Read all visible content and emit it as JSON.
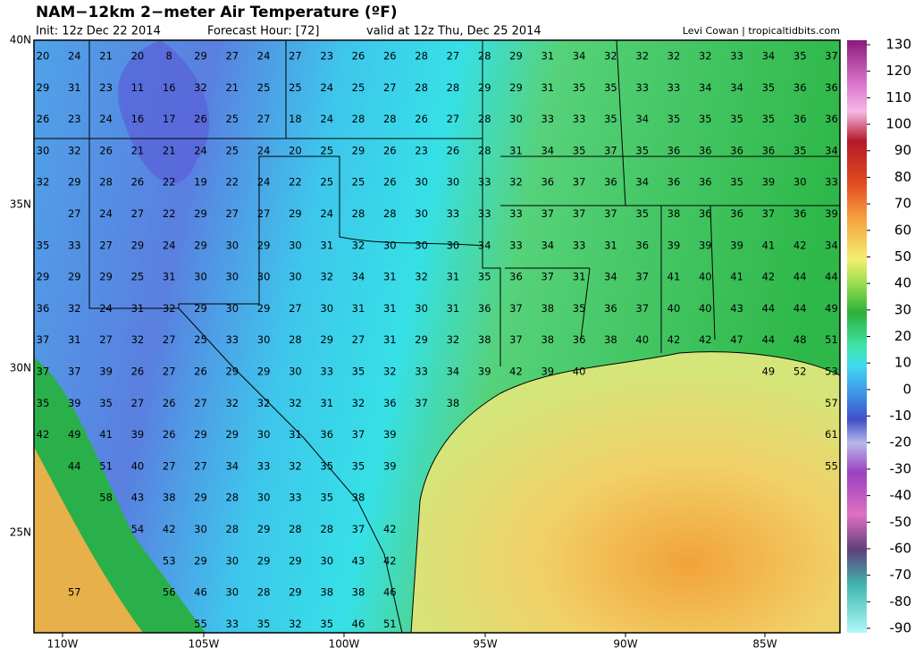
{
  "header": {
    "title": "NAM−12km 2−meter Air Temperature (ºF)",
    "init": "Init: 12z Dec 22 2014",
    "forecast_hour": "Forecast Hour: [72]",
    "valid": "valid at 12z Thu, Dec 25 2014",
    "credit": "Levi Cowan | tropicaltidbits.com"
  },
  "map": {
    "lat_labels": [
      "40N",
      "35N",
      "30N",
      "25N"
    ],
    "lon_labels": [
      "110W",
      "105W",
      "100W",
      "95W",
      "90W",
      "85W"
    ],
    "stations": [
      [
        20,
        24,
        21,
        20,
        8,
        29,
        27,
        24,
        27,
        23,
        26,
        26,
        28,
        27,
        28,
        29,
        31,
        34,
        32,
        32,
        32,
        32,
        33,
        34,
        35,
        37
      ],
      [
        29,
        31,
        23,
        11,
        16,
        32,
        21,
        25,
        25,
        24,
        25,
        27,
        28,
        28,
        29,
        29,
        31,
        35,
        35,
        33,
        33,
        34,
        34,
        35,
        36,
        36
      ],
      [
        26,
        23,
        24,
        16,
        17,
        26,
        25,
        27,
        18,
        24,
        28,
        28,
        26,
        27,
        28,
        30,
        33,
        33,
        35,
        34,
        35,
        35,
        35,
        35,
        36,
        36
      ],
      [
        30,
        32,
        26,
        21,
        21,
        24,
        25,
        24,
        20,
        25,
        29,
        26,
        23,
        26,
        28,
        31,
        34,
        35,
        37,
        35,
        36,
        36,
        36,
        36,
        35,
        34
      ],
      [
        32,
        29,
        28,
        26,
        22,
        19,
        22,
        24,
        22,
        25,
        25,
        26,
        30,
        30,
        33,
        32,
        36,
        37,
        36,
        34,
        36,
        36,
        35,
        39,
        30,
        33
      ],
      [
        null,
        27,
        24,
        27,
        22,
        29,
        27,
        27,
        29,
        24,
        28,
        28,
        30,
        33,
        33,
        33,
        37,
        37,
        37,
        35,
        38,
        36,
        36,
        37,
        36,
        39
      ],
      [
        35,
        33,
        27,
        29,
        24,
        29,
        30,
        29,
        30,
        31,
        32,
        30,
        30,
        30,
        34,
        33,
        34,
        33,
        31,
        36,
        39,
        39,
        39,
        41,
        42,
        34
      ],
      [
        29,
        29,
        29,
        25,
        31,
        30,
        30,
        30,
        30,
        32,
        34,
        31,
        32,
        31,
        35,
        36,
        37,
        31,
        34,
        37,
        41,
        40,
        41,
        42,
        44,
        44
      ],
      [
        36,
        32,
        24,
        31,
        32,
        29,
        30,
        29,
        27,
        30,
        31,
        31,
        30,
        31,
        36,
        37,
        38,
        35,
        36,
        37,
        40,
        40,
        43,
        44,
        44,
        49
      ],
      [
        37,
        31,
        27,
        32,
        27,
        25,
        33,
        30,
        28,
        29,
        27,
        31,
        29,
        32,
        38,
        37,
        38,
        36,
        38,
        40,
        42,
        42,
        47,
        44,
        48,
        51
      ],
      [
        37,
        37,
        39,
        26,
        27,
        26,
        29,
        29,
        30,
        33,
        35,
        32,
        33,
        34,
        39,
        42,
        39,
        40,
        null,
        null,
        null,
        null,
        null,
        49,
        52,
        53
      ],
      [
        35,
        39,
        35,
        27,
        26,
        27,
        32,
        32,
        32,
        31,
        32,
        36,
        37,
        38,
        null,
        null,
        null,
        null,
        null,
        null,
        null,
        null,
        null,
        null,
        null,
        57
      ],
      [
        42,
        49,
        41,
        39,
        26,
        29,
        29,
        30,
        31,
        36,
        37,
        39,
        null,
        null,
        null,
        null,
        null,
        null,
        null,
        null,
        null,
        null,
        null,
        null,
        null,
        61
      ],
      [
        null,
        44,
        51,
        40,
        27,
        27,
        34,
        33,
        32,
        35,
        35,
        39,
        null,
        null,
        null,
        null,
        null,
        null,
        null,
        null,
        null,
        null,
        null,
        null,
        null,
        55
      ],
      [
        null,
        null,
        58,
        43,
        38,
        29,
        28,
        30,
        33,
        35,
        38,
        null,
        null,
        null,
        null,
        null,
        null,
        null,
        null,
        null,
        null,
        null,
        null,
        null,
        null,
        null
      ],
      [
        null,
        null,
        null,
        54,
        42,
        30,
        28,
        29,
        28,
        28,
        37,
        42,
        null,
        null,
        null,
        null,
        null,
        null,
        null,
        null,
        null,
        null,
        null,
        null,
        null,
        null
      ],
      [
        null,
        null,
        null,
        null,
        53,
        29,
        30,
        29,
        29,
        30,
        43,
        42,
        null,
        null,
        null,
        null,
        null,
        null,
        null,
        null,
        null,
        null,
        null,
        null,
        null,
        null
      ],
      [
        null,
        57,
        null,
        null,
        56,
        46,
        30,
        28,
        29,
        38,
        38,
        46,
        null,
        null,
        null,
        null,
        null,
        null,
        null,
        null,
        null,
        null,
        null,
        null,
        null,
        null
      ],
      [
        null,
        null,
        null,
        null,
        null,
        55,
        33,
        35,
        32,
        35,
        46,
        51,
        null,
        null,
        null,
        null,
        null,
        null,
        null,
        null,
        null,
        null,
        null,
        null,
        null,
        null
      ]
    ]
  },
  "colorbar": {
    "ticks": [
      130,
      120,
      110,
      100,
      90,
      80,
      70,
      60,
      50,
      40,
      30,
      20,
      10,
      0,
      -10,
      -20,
      -30,
      -40,
      -50,
      -60,
      -70,
      -80,
      -90
    ]
  }
}
